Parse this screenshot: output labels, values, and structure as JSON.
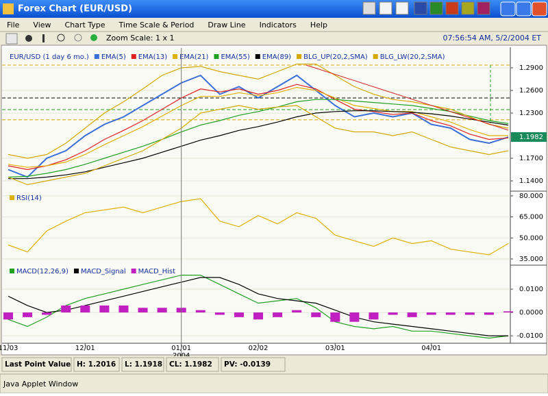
{
  "window": {
    "title": "Forex Chart (EUR/USD)"
  },
  "menu": [
    "File",
    "View",
    "Chart Type",
    "Time Scale & Period",
    "Draw Line",
    "Indicators",
    "Help"
  ],
  "toolbar": {
    "zoom": "Zoom Scale: 1 x 1",
    "timestamp": "07:56:54 AM, 5/2/2004 ET"
  },
  "chart_data": [
    {
      "type": "line",
      "title": "EUR/USD (1 day 6 mo.)",
      "series": [
        {
          "name": "EMA(5)",
          "color": "#3a6fd8",
          "values": [
            1.155,
            1.145,
            1.17,
            1.18,
            1.2,
            1.215,
            1.225,
            1.24,
            1.255,
            1.27,
            1.28,
            1.255,
            1.265,
            1.25,
            1.265,
            1.28,
            1.26,
            1.24,
            1.225,
            1.23,
            1.225,
            1.23,
            1.215,
            1.21,
            1.195,
            1.19,
            1.198
          ]
        },
        {
          "name": "EMA(13)",
          "color": "#e02020",
          "values": [
            1.16,
            1.155,
            1.16,
            1.168,
            1.18,
            1.195,
            1.207,
            1.22,
            1.235,
            1.25,
            1.262,
            1.258,
            1.262,
            1.255,
            1.26,
            1.268,
            1.262,
            1.248,
            1.235,
            1.232,
            1.228,
            1.23,
            1.22,
            1.213,
            1.202,
            1.195,
            1.197
          ]
        },
        {
          "name": "EMA(21)",
          "color": "#e0b000",
          "values": [
            1.162,
            1.158,
            1.16,
            1.165,
            1.175,
            1.188,
            1.2,
            1.212,
            1.226,
            1.24,
            1.252,
            1.252,
            1.257,
            1.253,
            1.257,
            1.264,
            1.26,
            1.25,
            1.24,
            1.236,
            1.232,
            1.232,
            1.225,
            1.218,
            1.208,
            1.2,
            1.2
          ]
        },
        {
          "name": "EMA(55)",
          "color": "#20a020",
          "values": [
            1.145,
            1.146,
            1.15,
            1.155,
            1.162,
            1.17,
            1.178,
            1.186,
            1.195,
            1.205,
            1.214,
            1.22,
            1.227,
            1.232,
            1.238,
            1.245,
            1.248,
            1.248,
            1.246,
            1.244,
            1.242,
            1.24,
            1.236,
            1.232,
            1.226,
            1.22,
            1.216
          ]
        },
        {
          "name": "EMA(89)",
          "color": "#000000",
          "values": [
            1.143,
            1.143,
            1.145,
            1.148,
            1.152,
            1.158,
            1.164,
            1.17,
            1.178,
            1.186,
            1.194,
            1.2,
            1.207,
            1.212,
            1.218,
            1.225,
            1.23,
            1.232,
            1.233,
            1.233,
            1.232,
            1.231,
            1.229,
            1.226,
            1.222,
            1.218,
            1.214
          ]
        },
        {
          "name": "BLG_UP(20,2,SMA)",
          "color": "#d4a800",
          "values": [
            1.175,
            1.17,
            1.175,
            1.19,
            1.21,
            1.23,
            1.245,
            1.262,
            1.28,
            1.29,
            1.292,
            1.285,
            1.28,
            1.275,
            1.285,
            1.295,
            1.295,
            1.28,
            1.265,
            1.255,
            1.248,
            1.245,
            1.24,
            1.235,
            1.225,
            1.215,
            1.21
          ]
        },
        {
          "name": "BLG_LW(20,2,SMA)",
          "color": "#d4a800",
          "values": [
            1.145,
            1.135,
            1.14,
            1.145,
            1.15,
            1.16,
            1.17,
            1.18,
            1.195,
            1.21,
            1.23,
            1.235,
            1.24,
            1.235,
            1.238,
            1.24,
            1.225,
            1.21,
            1.205,
            1.205,
            1.2,
            1.205,
            1.195,
            1.185,
            1.18,
            1.175,
            1.18
          ]
        }
      ],
      "hlines": [
        {
          "value": 1.25,
          "color": "#000000"
        },
        {
          "value": 1.2345,
          "color": "#20a020"
        },
        {
          "value": 1.221,
          "color": "#d4a800"
        },
        {
          "value": 1.2936,
          "color": "#d4a800"
        }
      ],
      "last_value": 1.1982,
      "ylim": [
        1.1273,
        1.3118
      ],
      "yticks": [
        {
          "value": 1.29,
          "label": "1.2900"
        },
        {
          "value": 1.26,
          "label": "1.2600"
        },
        {
          "value": 1.23,
          "label": "1.2300"
        },
        {
          "value": 1.17,
          "label": "1.1700"
        },
        {
          "value": 1.14,
          "label": "1.1400"
        }
      ]
    },
    {
      "type": "line",
      "series": [
        {
          "name": "RSI(14)",
          "color": "#e0b000",
          "values": [
            45,
            40,
            55,
            62,
            68,
            70,
            72,
            68,
            72,
            76,
            78,
            62,
            58,
            66,
            60,
            68,
            64,
            52,
            48,
            44,
            50,
            46,
            48,
            42,
            40,
            38,
            46
          ]
        }
      ],
      "ylim": [
        31.1,
        82.4
      ],
      "yticks": [
        {
          "value": 80,
          "label": "80.000"
        },
        {
          "value": 65,
          "label": "65.000"
        },
        {
          "value": 50,
          "label": "50.000"
        },
        {
          "value": 35,
          "label": "35.000"
        }
      ]
    },
    {
      "type": "line",
      "categories": [
        "11/03",
        null,
        null,
        null,
        "12/01",
        null,
        null,
        null,
        null,
        "01/01",
        null,
        null,
        null,
        "02/02",
        null,
        null,
        null,
        "03/01",
        null,
        null,
        null,
        null,
        "04/01",
        null,
        null,
        null,
        null
      ],
      "x_sublabel": "2004",
      "series": [
        {
          "name": "MACD(12,26,9)",
          "color": "#20a020",
          "values": [
            -0.003,
            -0.006,
            -0.002,
            0.003,
            0.006,
            0.008,
            0.01,
            0.012,
            0.014,
            0.016,
            0.016,
            0.012,
            0.008,
            0.004,
            0.005,
            0.006,
            0.002,
            -0.004,
            -0.006,
            -0.007,
            -0.006,
            -0.008,
            -0.008,
            -0.009,
            -0.01,
            -0.011,
            -0.01
          ]
        },
        {
          "name": "MACD_Signal",
          "color": "#000000",
          "values": [
            0.007,
            0.003,
            0,
            0.001,
            0.003,
            0.005,
            0.007,
            0.009,
            0.011,
            0.013,
            0.015,
            0.015,
            0.012,
            0.008,
            0.006,
            0.005,
            0.004,
            0.001,
            -0.002,
            -0.004,
            -0.005,
            -0.006,
            -0.007,
            -0.008,
            -0.009,
            -0.01,
            -0.01
          ]
        },
        {
          "name": "MACD_Hist",
          "color": "#c020c0",
          "type": "bar",
          "values": [
            -0.003,
            -0.002,
            -0.001,
            0.003,
            0.003,
            0.003,
            0.003,
            0.002,
            0.002,
            0.002,
            0.001,
            -0.001,
            -0.002,
            -0.003,
            -0.002,
            0.001,
            -0.002,
            -0.004,
            -0.004,
            -0.003,
            -0.001,
            -0.002,
            -0.001,
            -0.001,
            -0.001,
            -0.001,
            0.0005
          ]
        }
      ],
      "ylim": [
        -0.0129,
        0.02
      ],
      "yticks": [
        {
          "value": 0.01,
          "label": "0.0100"
        },
        {
          "value": 0,
          "label": "0.0000"
        },
        {
          "value": -0.01,
          "label": "-0.0100"
        }
      ]
    }
  ],
  "status": [
    "Last Point Value",
    "H: 1.2016",
    "L: 1.1918",
    "CL: 1.1982",
    "PV: -0.0139"
  ],
  "footer": "Java Applet Window"
}
